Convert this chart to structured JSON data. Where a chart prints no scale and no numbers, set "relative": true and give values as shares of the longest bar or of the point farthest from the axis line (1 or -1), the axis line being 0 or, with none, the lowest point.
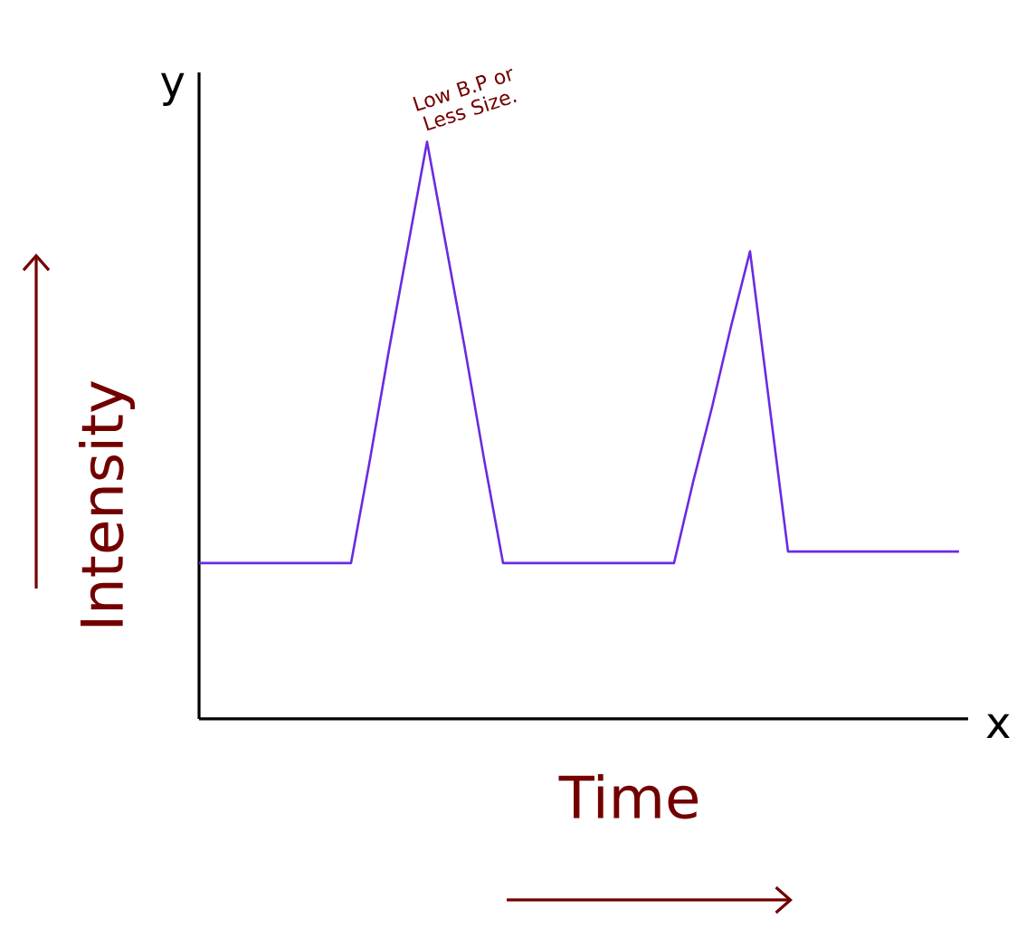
{
  "chart_data": {
    "type": "line",
    "relative": true,
    "xlabel": "Time",
    "ylabel": "Intensity",
    "categories": [
      null,
      null,
      null,
      null,
      null,
      null,
      null,
      null,
      null,
      null,
      null,
      null,
      null,
      null,
      null,
      null,
      null,
      null,
      null,
      null,
      null,
      null,
      null,
      null,
      null,
      null,
      null,
      null,
      null,
      null,
      null,
      null,
      null,
      null,
      null,
      null,
      null,
      null,
      null,
      null,
      null
    ],
    "series": [
      {
        "color": "#6a2be0",
        "values": [
          0.27,
          0.27,
          0.27,
          0.27,
          0.27,
          0.27,
          0.27,
          0.27,
          0.27,
          0.45,
          0.64,
          0.82,
          1,
          0.82,
          0.64,
          0.45,
          0.27,
          0.27,
          0.27,
          0.27,
          0.27,
          0.27,
          0.27,
          0.27,
          0.27,
          0.27,
          0.41,
          0.54,
          0.68,
          0.81,
          0.55,
          0.29,
          0.29,
          0.29,
          0.29,
          0.29,
          0.29,
          0.29,
          0.29,
          0.29,
          0.29
        ]
      }
    ],
    "annotations": [
      "Low B.P or Less Size.",
      "y",
      "x"
    ],
    "tick_labels": false,
    "marker": "none",
    "line_style": "solid"
  }
}
